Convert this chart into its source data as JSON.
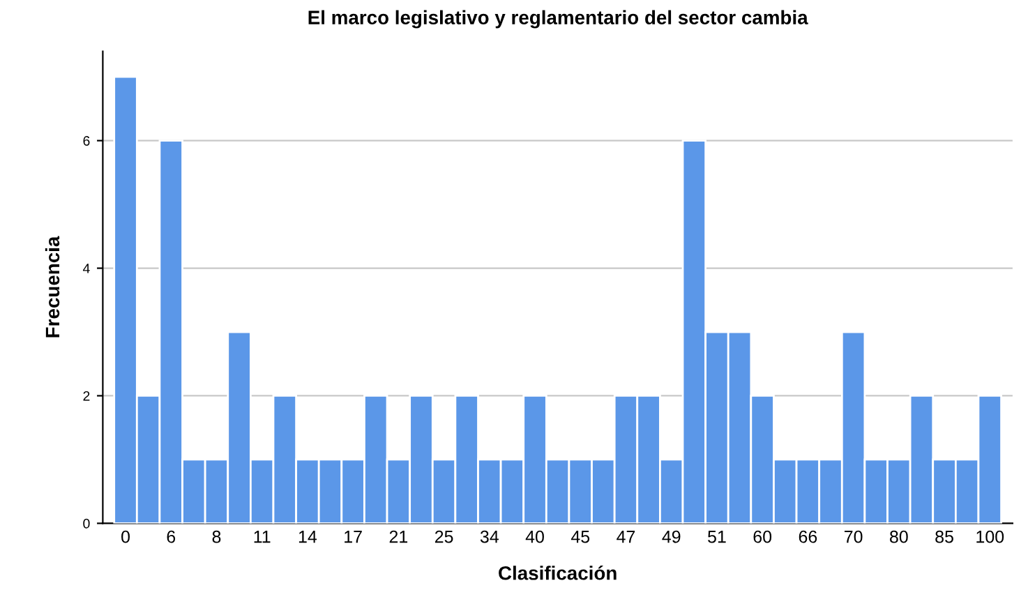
{
  "chart_data": {
    "type": "bar",
    "title": "El marco legislativo y reglamentario del sector cambia",
    "xlabel": "Clasificación",
    "ylabel": "Frecuencia",
    "categories": [
      "0",
      null,
      "6",
      null,
      "8",
      null,
      "11",
      null,
      "14",
      null,
      "17",
      null,
      "21",
      null,
      "25",
      null,
      "34",
      null,
      "40",
      null,
      "45",
      null,
      "47",
      null,
      "49",
      null,
      "51",
      null,
      "60",
      null,
      "66",
      null,
      "70",
      null,
      "80",
      null,
      "85",
      null,
      "100"
    ],
    "values": [
      7,
      2,
      6,
      1,
      1,
      3,
      1,
      2,
      1,
      1,
      1,
      2,
      1,
      2,
      1,
      2,
      1,
      1,
      2,
      1,
      1,
      1,
      2,
      2,
      1,
      6,
      3,
      3,
      2,
      1,
      1,
      1,
      3,
      1,
      1,
      2,
      1,
      1,
      2
    ],
    "color": "#5b97e8",
    "ylim": [
      0,
      7.4
    ],
    "yticks": [
      0,
      2,
      4,
      6
    ],
    "grid": "y"
  }
}
